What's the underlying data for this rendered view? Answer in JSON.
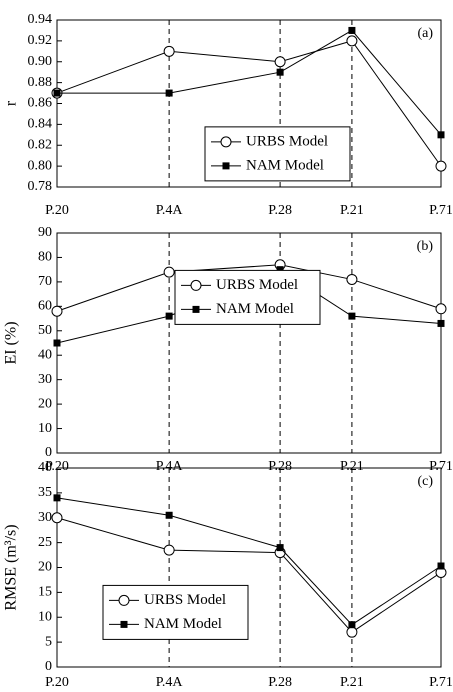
{
  "chart_data": [
    {
      "type": "line",
      "annotation": "(a)",
      "y_label": "r",
      "categories": [
        "P.20",
        "P.4A",
        "P.28",
        "P.21",
        "P.71"
      ],
      "series": [
        {
          "name": "URBS Model",
          "color": "#000000",
          "marker": "circle",
          "values": [
            0.87,
            0.91,
            0.9,
            0.92,
            0.8
          ]
        },
        {
          "name": "NAM Model",
          "color": "#000000",
          "marker": "square",
          "values": [
            0.87,
            0.87,
            0.89,
            0.93,
            0.83
          ]
        }
      ],
      "ylim": [
        0.78,
        0.94
      ],
      "yticks": [
        0.78,
        {
          "value": 0.8,
          "label": "0.80"
        },
        0.82,
        0.84,
        0.86,
        0.88,
        {
          "value": 0.9,
          "label": "0.90"
        },
        0.92,
        0.94
      ],
      "grid": true,
      "legend": "center right"
    },
    {
      "type": "line",
      "annotation": "(b)",
      "y_label": "EI (%)",
      "categories": [
        "P.20",
        "P.4A",
        "P.28",
        "P.21",
        "P.71"
      ],
      "series": [
        {
          "name": "URBS Model",
          "color": "#000000",
          "marker": "circle",
          "values": [
            58,
            74,
            77,
            71,
            59
          ]
        },
        {
          "name": "NAM Model",
          "color": "#000000",
          "marker": "square",
          "values": [
            45,
            56,
            75,
            56,
            53
          ]
        }
      ],
      "ylim": [
        0,
        90
      ],
      "yticks": [
        0,
        10,
        20,
        30,
        40,
        50,
        60,
        70,
        80,
        90
      ],
      "grid": true,
      "legend": "center"
    },
    {
      "type": "line",
      "annotation": "(c)",
      "y_label": "RMSE (m³/s)",
      "categories": [
        "P.20",
        "P.4A",
        "P.28",
        "P.21",
        "P.71"
      ],
      "series": [
        {
          "name": "URBS Model",
          "color": "#000000",
          "marker": "circle",
          "values": [
            30,
            23.5,
            23,
            7,
            19
          ]
        },
        {
          "name": "NAM Model",
          "color": "#000000",
          "marker": "square",
          "values": [
            34,
            30.5,
            24,
            8.5,
            20.3
          ]
        }
      ],
      "ylim": [
        0,
        40
      ],
      "yticks": [
        0,
        5,
        10,
        15,
        20,
        25,
        30,
        35,
        40
      ],
      "grid": true,
      "legend": "lower left"
    }
  ]
}
